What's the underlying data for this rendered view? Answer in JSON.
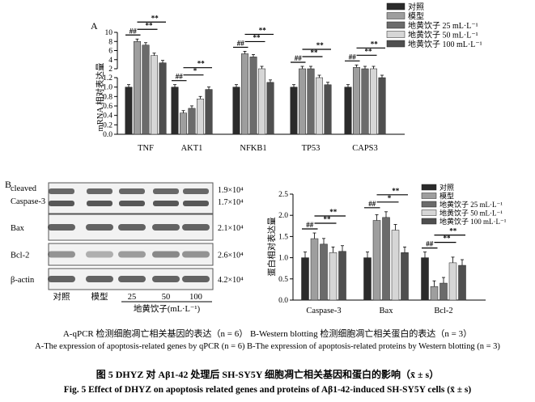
{
  "figure_label_a": "A",
  "figure_label_b": "B",
  "legend": [
    "对照",
    "模型",
    "地黄饮子 25 mL·L⁻¹",
    "地黄饮子 50 mL·L⁻¹",
    "地黄饮子 100 mL·L⁻¹"
  ],
  "series_colors": [
    "#2b2b2b",
    "#9e9e9e",
    "#6b6b6b",
    "#d6d6d6",
    "#4f4f4f"
  ],
  "sig_labels": {
    "model": "##",
    "drug": "**",
    "drug_weak": "*"
  },
  "chart_data": [
    {
      "type": "bar",
      "panel": "A",
      "ylabel": "mRNA 相对表达量",
      "y_axis_broken": true,
      "y_ticks_lower": [
        0,
        0.2,
        0.4,
        0.6,
        0.8,
        1.0,
        1.2
      ],
      "y_ticks_upper": [
        2,
        4,
        6,
        8,
        10
      ],
      "categories": [
        "TNF",
        "AKT1",
        "NFKB1",
        "TP53",
        "CAPS3"
      ],
      "series": [
        {
          "name": "对照",
          "values": [
            1.0,
            1.0,
            1.0,
            1.0,
            1.0
          ]
        },
        {
          "name": "模型",
          "values": [
            8.0,
            0.45,
            5.3,
            1.65,
            2.3
          ]
        },
        {
          "name": "地黄饮子 25 mL·L⁻¹",
          "values": [
            7.2,
            0.55,
            4.6,
            1.5,
            1.95
          ]
        },
        {
          "name": "地黄饮子 50 mL·L⁻¹",
          "values": [
            4.9,
            0.75,
            1.7,
            1.2,
            1.55
          ]
        },
        {
          "name": "地黄饮子 100 mL·L⁻¹",
          "values": [
            3.3,
            0.95,
            1.1,
            1.05,
            1.2
          ]
        }
      ]
    },
    {
      "type": "bar",
      "panel": "B",
      "ylabel": "蛋白相对表达量",
      "ylim": [
        0,
        2.5
      ],
      "y_ticks": [
        0,
        0.5,
        1.0,
        1.5,
        2.0,
        2.5
      ],
      "categories": [
        "Caspase-3",
        "Bax",
        "Bcl-2"
      ],
      "series": [
        {
          "name": "对照",
          "values": [
            1.0,
            1.0,
            1.0
          ]
        },
        {
          "name": "模型",
          "values": [
            1.45,
            1.88,
            0.32
          ]
        },
        {
          "name": "地黄饮子 25 mL·L⁻¹",
          "values": [
            1.32,
            1.95,
            0.4
          ]
        },
        {
          "name": "地黄饮子 50 mL·L⁻¹",
          "values": [
            1.12,
            1.65,
            0.88
          ]
        },
        {
          "name": "地黄饮子 100 mL·L⁻¹",
          "values": [
            1.15,
            1.12,
            0.82
          ]
        }
      ]
    }
  ],
  "western_blot": {
    "rows": [
      {
        "label": "cleaved Caspase-3",
        "mw": [
          "1.9×10⁴",
          "1.7×10⁴"
        ]
      },
      {
        "label": "Bax",
        "mw": [
          "2.1×10⁴"
        ]
      },
      {
        "label": "Bcl-2",
        "mw": [
          "2.6×10⁴"
        ]
      },
      {
        "label": "β-actin",
        "mw": [
          "4.2×10⁴"
        ]
      }
    ],
    "lanes": [
      "对照",
      "模型",
      "25",
      "50",
      "100"
    ],
    "lane_group_label": "地黄饮子(mL·L⁻¹)"
  },
  "captions": {
    "sub_cn": "A-qPCR 检测细胞凋亡相关基因的表达（n = 6） B-Western blotting 检测细胞凋亡相关蛋白的表达（n = 3）",
    "sub_en": "A-The expression of apoptosis-related genes by qPCR (n = 6)  B-The expression of apoptosis-related proteins by Western blotting (n = 3)",
    "title_cn": "图 5  DHYZ 对 Aβ1-42 处理后 SH-SY5Y 细胞凋亡相关基因和蛋白的影响（x̄ ± s）",
    "title_en": "Fig. 5   Effect of DHYZ on apoptosis related genes and proteins of Aβ1-42-induced SH-SY5Y cells (x̄ ± s)"
  }
}
